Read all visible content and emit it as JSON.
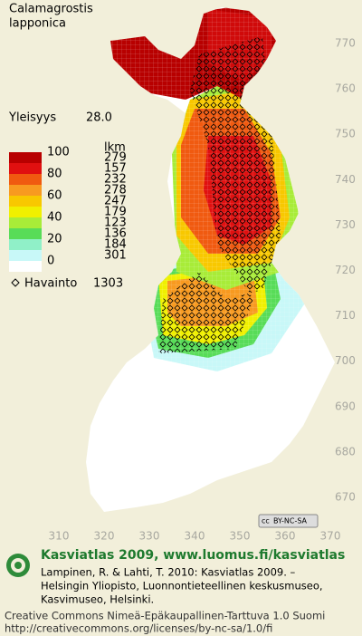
{
  "title": [
    "Calamagrostis",
    "lapponica"
  ],
  "frequency": {
    "label": "Yleisyys",
    "value": "28.0"
  },
  "legend": {
    "scale": [
      100,
      80,
      60,
      40,
      20,
      0
    ],
    "count_header": "lkm",
    "counts": [
      279,
      157,
      232,
      278,
      247,
      179,
      123,
      136,
      184,
      301
    ],
    "colors": [
      "#b80000",
      "#e01010",
      "#f05a10",
      "#f89a20",
      "#f8c800",
      "#f0f000",
      "#a8ec38",
      "#58dc58",
      "#90f0c8",
      "#c8f8f8",
      "#ffffff"
    ]
  },
  "observations": {
    "label": "Havainto",
    "count": 1303
  },
  "y_axis": [
    770,
    760,
    750,
    740,
    730,
    720,
    710,
    700,
    690,
    680,
    670
  ],
  "x_axis": [
    310,
    320,
    330,
    340,
    350,
    360,
    370
  ],
  "license_badge": "BY-NC-SA",
  "footer": {
    "heading": "Kasviatlas 2009, www.luomus.fi/kasviatlas",
    "citation": [
      "Lampinen, R. & Lahti, T. 2010: Kasviatlas 2009. –",
      "Helsingin Yliopisto, Luonnontieteellinen keskusmuseo,",
      "Kasvimuseo, Helsinki."
    ],
    "license": [
      "Creative Commons Nimeä-Epäkaupallinen-Tarttuva 1.0 Suomi",
      "http://creativecommons.org/licenses/by-nc-sa/1.0/fi"
    ]
  }
}
